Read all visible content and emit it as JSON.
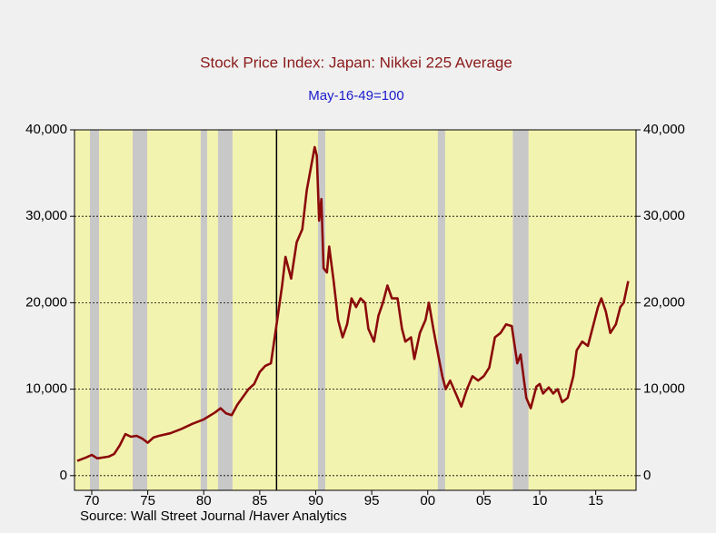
{
  "chart_data": {
    "type": "line",
    "title": "Stock Price Index: Japan: Nikkei 225 Average",
    "subtitle": "May-16-49=100",
    "source": "Source:  Wall Street Journal /Haver Analytics",
    "x": [
      1968.7,
      1969.5,
      1970.0,
      1970.5,
      1971.5,
      1972,
      1972.5,
      1973,
      1973.5,
      1974,
      1974.5,
      1975,
      1975.5,
      1976,
      1977,
      1978,
      1979,
      1980,
      1981,
      1981.5,
      1982,
      1982.5,
      1983,
      1984,
      1984.5,
      1985,
      1985.5,
      1986,
      1986.5,
      1987,
      1987.3,
      1987.8,
      1988.3,
      1988.8,
      1989.2,
      1989.9,
      1990.1,
      1990.3,
      1990.5,
      1990.7,
      1991,
      1991.2,
      1991.6,
      1992,
      1992.4,
      1992.8,
      1993.2,
      1993.6,
      1994,
      1994.4,
      1994.7,
      1995.2,
      1995.6,
      1996,
      1996.4,
      1996.8,
      1997.3,
      1997.7,
      1998,
      1998.5,
      1998.8,
      1999.3,
      1999.8,
      2000.1,
      2000.5,
      2001,
      2001.3,
      2001.6,
      2002,
      2002.5,
      2003,
      2003.5,
      2004,
      2004.5,
      2005,
      2005.5,
      2006,
      2006.5,
      2007,
      2007.5,
      2008,
      2008.3,
      2008.8,
      2009.2,
      2009.7,
      2010,
      2010.3,
      2010.8,
      2011.2,
      2011.6,
      2012,
      2012.5,
      2013,
      2013.3,
      2013.8,
      2014.3,
      2014.8,
      2015.2,
      2015.5,
      2015.9,
      2016.3,
      2016.8,
      2017.2,
      2017.5,
      2017.9
    ],
    "series": [
      {
        "name": "Nikkei 225",
        "color": "#8b0a0a",
        "values": [
          1700,
          2100,
          2400,
          2000,
          2200,
          2500,
          3500,
          4800,
          4500,
          4600,
          4300,
          3800,
          4400,
          4600,
          4900,
          5400,
          6000,
          6500,
          7300,
          7800,
          7200,
          7000,
          8200,
          10000,
          10600,
          12000,
          12700,
          13000,
          17500,
          22000,
          25300,
          22800,
          27000,
          28500,
          33000,
          38000,
          37000,
          29500,
          32000,
          24000,
          23500,
          26500,
          22500,
          18000,
          16000,
          17500,
          20500,
          19500,
          20500,
          20000,
          17000,
          15500,
          18500,
          20000,
          22000,
          20500,
          20500,
          17000,
          15500,
          16000,
          13500,
          16500,
          18000,
          20000,
          17000,
          13500,
          11500,
          10000,
          11000,
          9500,
          8000,
          10000,
          11500,
          11000,
          11500,
          12500,
          16000,
          16500,
          17500,
          17300,
          13000,
          14000,
          9000,
          7800,
          10300,
          10600,
          9500,
          10200,
          9500,
          10000,
          8500,
          9000,
          11500,
          14500,
          15500,
          15000,
          17500,
          19500,
          20500,
          19000,
          16500,
          17500,
          19500,
          20000,
          22500
        ]
      }
    ],
    "shaded_periods": [
      [
        1969.84,
        1970.65
      ],
      [
        1973.65,
        1974.95
      ],
      [
        1979.73,
        1980.3
      ],
      [
        1981.27,
        1982.57
      ],
      [
        1990.2,
        1990.85
      ],
      [
        2000.9,
        2001.55
      ],
      [
        2007.6,
        2009.0
      ]
    ],
    "shade_color": "#c8c8c8",
    "vline": 1986.5,
    "xlim": [
      1968.46,
      2018.6
    ],
    "xticks": [
      {
        "value": 1970,
        "label": "70"
      },
      {
        "value": 1975,
        "label": "75"
      },
      {
        "value": 1980,
        "label": "80"
      },
      {
        "value": 1985,
        "label": "85"
      },
      {
        "value": 1990,
        "label": "90"
      },
      {
        "value": 1995,
        "label": "95"
      },
      {
        "value": 2000,
        "label": "00"
      },
      {
        "value": 2005,
        "label": "05"
      },
      {
        "value": 2010,
        "label": "10"
      },
      {
        "value": 2015,
        "label": "15"
      }
    ],
    "ylim": [
      -1700,
      40000
    ],
    "yticks": [
      0,
      {
        "value": 10000,
        "label": "10,000"
      },
      {
        "value": 20000,
        "label": "20,000"
      },
      {
        "value": 30000,
        "label": "30,000"
      },
      {
        "value": 40000,
        "label": "40,000"
      }
    ],
    "y2lim": [
      -1700,
      40000
    ],
    "y2ticks": [
      0,
      {
        "value": 10000,
        "label": "10,000"
      },
      {
        "value": 20000,
        "label": "20,000"
      },
      {
        "value": 30000,
        "label": "30,000"
      },
      {
        "value": 40000,
        "label": "40,000"
      }
    ],
    "grid": true
  }
}
